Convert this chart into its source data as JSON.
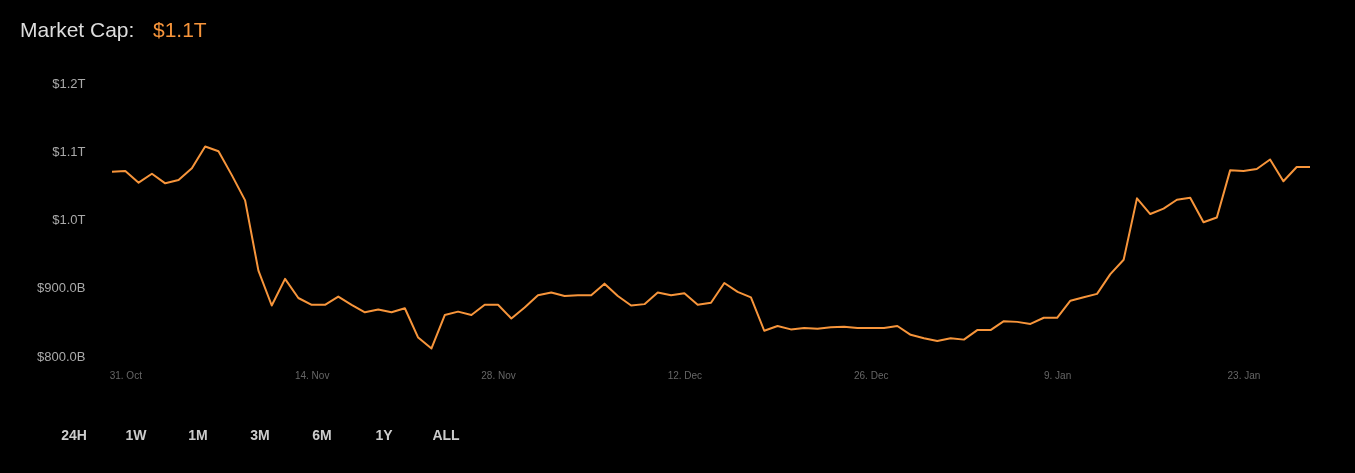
{
  "chart_data": {
    "type": "line",
    "title": "Market Cap:",
    "annotations": [
      "$1.1T",
      "24H",
      "1W",
      "1M",
      "3M",
      "6M",
      "1Y",
      "ALL"
    ],
    "categories": [
      null,
      "31. Oct",
      null,
      null,
      null,
      null,
      null,
      null,
      null,
      null,
      null,
      null,
      null,
      null,
      null,
      "14. Nov",
      null,
      null,
      null,
      null,
      null,
      null,
      null,
      null,
      null,
      null,
      null,
      null,
      null,
      "28. Nov",
      null,
      null,
      null,
      null,
      null,
      null,
      null,
      null,
      null,
      null,
      null,
      null,
      null,
      "12. Dec",
      null,
      null,
      null,
      null,
      null,
      null,
      null,
      null,
      null,
      null,
      null,
      null,
      null,
      "26. Dec",
      null,
      null,
      null,
      null,
      null,
      null,
      null,
      null,
      null,
      null,
      null,
      null,
      null,
      "9. Jan",
      null,
      null,
      null,
      null,
      null,
      null,
      null,
      null,
      null,
      null,
      null,
      null,
      null,
      "23. Jan",
      null,
      null,
      null,
      null,
      null
    ],
    "series": [
      {
        "color": "#f7953b",
        "values": [
          1070000000000.0,
          1071000000000.0,
          1054000000000.0,
          1067000000000.0,
          1053000000000.0,
          1058000000000.0,
          1075000000000.0,
          1107000000000.0,
          1100000000000.0,
          1065000000000.0,
          1028000000000.0,
          925000000000.0,
          874000000000.0,
          913000000000.0,
          885000000000.0,
          875000000000.0,
          875000000000.0,
          887000000000.0,
          875000000000.0,
          864000000000.0,
          868000000000.0,
          864000000000.0,
          870000000000.0,
          827000000000.0,
          811000000000.0,
          860000000000.0,
          865000000000.0,
          860000000000.0,
          875000000000.0,
          875000000000.0,
          855000000000.0,
          871000000000.0,
          889000000000.0,
          893000000000.0,
          888000000000.0,
          889000000000.0,
          889000000000.0,
          906000000000.0,
          888000000000.0,
          874000000000.0,
          876000000000.0,
          893000000000.0,
          889000000000.0,
          892000000000.0,
          875000000000.0,
          878000000000.0,
          907000000000.0,
          894000000000.0,
          886000000000.0,
          837000000000.0,
          844000000000.0,
          839000000000.0,
          841000000000.0,
          840000000000.0,
          842000000000.0,
          843000000000.0,
          841000000000.0,
          841000000000.0,
          841000000000.0,
          844000000000.0,
          831000000000.0,
          826000000000.0,
          822000000000.0,
          826000000000.0,
          824000000000.0,
          838000000000.0,
          838000000000.0,
          851000000000.0,
          850000000000.0,
          847000000000.0,
          856000000000.0,
          856000000000.0,
          881000000000.0,
          886000000000.0,
          891000000000.0,
          920000000000.0,
          941000000000.0,
          1031000000000.0,
          1008000000000.0,
          1016000000000.0,
          1029000000000.0,
          1032000000000.0,
          996000000000.0,
          1003000000000.0,
          1072000000000.0,
          1071000000000.0,
          1074000000000.0,
          1088000000000.0,
          1056000000000.0,
          1077000000000.0,
          1077000000000.0
        ]
      }
    ],
    "ylim": [
      800000000000.0,
      1200000000000.0
    ],
    "yticks": [
      {
        "value": 800000000000.0,
        "label": "$800.0B"
      },
      {
        "value": 900000000000.0,
        "label": "$900.0B"
      },
      {
        "value": 1000000000000.0,
        "label": "$1.0T"
      },
      {
        "value": 1100000000000.0,
        "label": "$1.1T"
      },
      {
        "value": 1200000000000.0,
        "label": "$1.2T"
      }
    ],
    "grid": false,
    "line_style": "solid"
  }
}
